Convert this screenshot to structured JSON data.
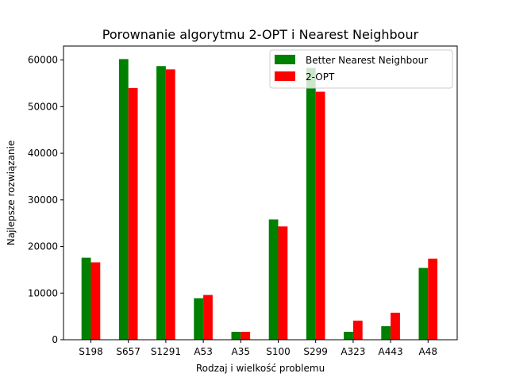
{
  "chart_data": {
    "type": "bar",
    "title": "Porownanie algorytmu 2-OPT i Nearest Neighbour",
    "xlabel": "Rodzaj i wielkość problemu",
    "ylabel": "Najlepsze rozwiązanie",
    "categories": [
      "S198",
      "S657",
      "S1291",
      "A53",
      "A35",
      "S100",
      "S299",
      "A323",
      "A443",
      "A48"
    ],
    "series": [
      {
        "name": "Better Nearest Neighbour",
        "color": "#008000",
        "values": [
          17600,
          60200,
          58700,
          8900,
          1700,
          25800,
          58300,
          1700,
          2900,
          15400
        ]
      },
      {
        "name": "2-OPT",
        "color": "#ff0000",
        "values": [
          16600,
          54000,
          58000,
          9600,
          1700,
          24300,
          53200,
          4100,
          5800,
          17400
        ]
      }
    ],
    "ylim": [
      0,
      63000
    ],
    "yticks": [
      0,
      10000,
      20000,
      30000,
      40000,
      50000,
      60000
    ],
    "grid": false,
    "legend_position": "top-right"
  }
}
